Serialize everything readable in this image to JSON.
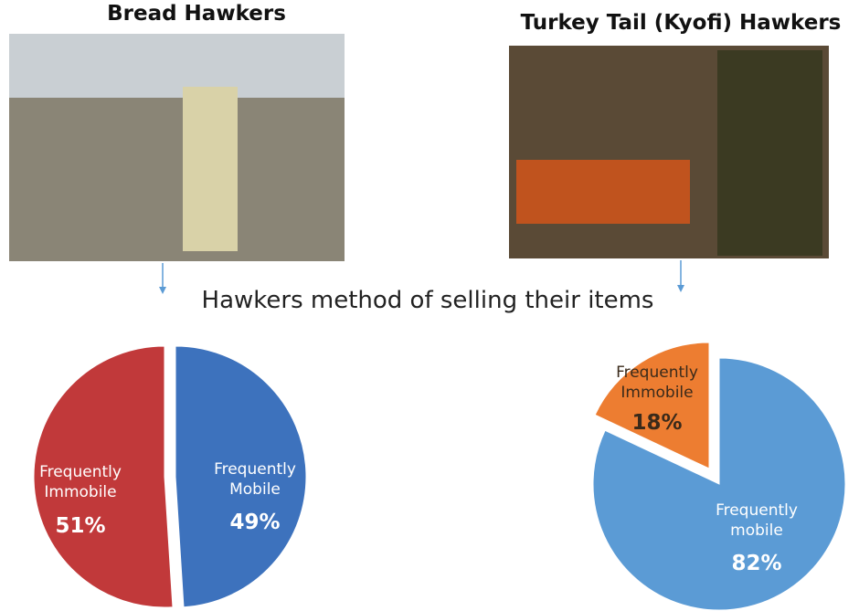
{
  "title": "Hawkers method of selling their items",
  "chart_data": [
    {
      "type": "pie",
      "title": "Bread Hawkers",
      "categories": [
        "Frequently Mobile",
        "Frequently Immobile"
      ],
      "values": [
        49,
        51
      ],
      "value_labels": [
        "49%",
        "51%"
      ],
      "colors": [
        "#3d72bd",
        "#c1393a"
      ]
    },
    {
      "type": "pie",
      "title": "Turkey Tail (Kyofi) Hawkers",
      "categories": [
        "Frequently mobile",
        "Frequently Immobile"
      ],
      "values": [
        82,
        18
      ],
      "value_labels": [
        "82%",
        "18%"
      ],
      "colors": [
        "#5b9bd5",
        "#ed7d31"
      ]
    }
  ]
}
